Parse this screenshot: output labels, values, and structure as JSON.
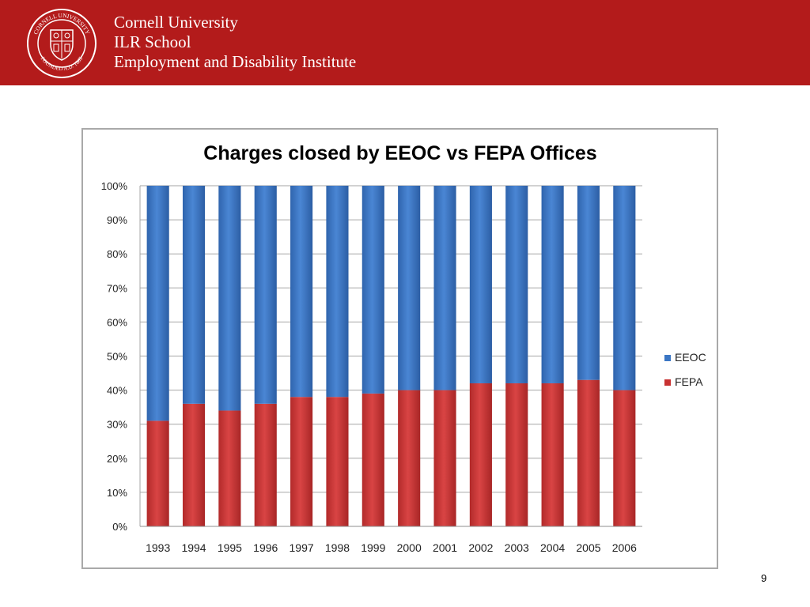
{
  "header": {
    "line1": "Cornell University",
    "line2": "ILR School",
    "line3": "Employment and Disability Institute",
    "background": "#b31b1b",
    "seal_text": "CORNELL UNIVERSITY FOUNDED A.D. 1865"
  },
  "chart_data": {
    "type": "bar",
    "stacked": true,
    "percent": true,
    "title": "Charges closed by EEOC vs FEPA Offices",
    "categories": [
      "1993",
      "1994",
      "1995",
      "1996",
      "1997",
      "1998",
      "1999",
      "2000",
      "2001",
      "2002",
      "2003",
      "2004",
      "2005",
      "2006"
    ],
    "series": [
      {
        "name": "EEOC",
        "color": "#3a76c4",
        "values": [
          69,
          64,
          66,
          64,
          62,
          62,
          61,
          60,
          60,
          58,
          58,
          58,
          57,
          60
        ]
      },
      {
        "name": "FEPA",
        "color": "#c83232",
        "values": [
          31,
          36,
          34,
          36,
          38,
          38,
          39,
          40,
          40,
          42,
          42,
          42,
          43,
          40
        ]
      }
    ],
    "ylim": [
      0,
      100
    ],
    "yticks": [
      "0%",
      "10%",
      "20%",
      "30%",
      "40%",
      "50%",
      "60%",
      "70%",
      "80%",
      "90%",
      "100%"
    ],
    "grid": true,
    "legend_position": "right"
  },
  "page_number": "9"
}
